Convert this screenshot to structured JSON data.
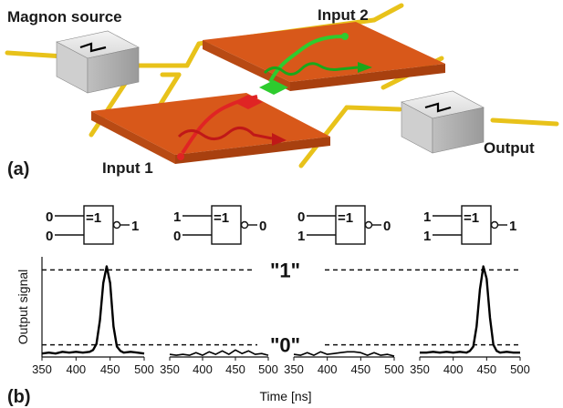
{
  "panel_a": {
    "label": "(a)",
    "magnon_source": "Magnon source",
    "input1": "Input 1",
    "input2": "Input 2",
    "output": "Output"
  },
  "panel_b": {
    "label": "(b)",
    "gates": [
      {
        "in1": "0",
        "in2": "0",
        "symbol": "=1",
        "out": "1"
      },
      {
        "in1": "1",
        "in2": "0",
        "symbol": "=1",
        "out": "0"
      },
      {
        "in1": "0",
        "in2": "1",
        "symbol": "=1",
        "out": "0"
      },
      {
        "in1": "1",
        "in2": "1",
        "symbol": "=1",
        "out": "1"
      }
    ],
    "level_high": "\"1\"",
    "level_low": "\"0\""
  },
  "chart_data": {
    "type": "line",
    "xlabel": "Time [ns]",
    "ylabel": "Output signal",
    "xlim": [
      350,
      500
    ],
    "ylim": [
      0,
      1.15
    ],
    "x_ticks": [
      "350",
      "400",
      "450",
      "500"
    ],
    "levels": {
      "high": 1.0,
      "low": 0.14
    },
    "series": [
      {
        "peak": true,
        "x": [
          350,
          360,
          370,
          380,
          390,
          400,
          410,
          420,
          425,
          430,
          435,
          440,
          445,
          450,
          455,
          460,
          465,
          470,
          480,
          490,
          500
        ],
        "y": [
          0.04,
          0.05,
          0.04,
          0.06,
          0.05,
          0.06,
          0.05,
          0.06,
          0.08,
          0.15,
          0.42,
          0.85,
          1.04,
          0.85,
          0.35,
          0.12,
          0.07,
          0.05,
          0.06,
          0.05,
          0.04
        ]
      },
      {
        "peak": false,
        "x": [
          350,
          360,
          370,
          380,
          390,
          400,
          410,
          420,
          430,
          440,
          450,
          460,
          470,
          480,
          490,
          500
        ],
        "y": [
          0.02,
          0.03,
          0.02,
          0.03,
          0.04,
          0.03,
          0.05,
          0.04,
          0.06,
          0.04,
          0.07,
          0.05,
          0.06,
          0.04,
          0.03,
          0.03
        ]
      },
      {
        "peak": false,
        "x": [
          350,
          360,
          370,
          380,
          390,
          400,
          410,
          420,
          430,
          440,
          450,
          460,
          470,
          480,
          490,
          500
        ],
        "y": [
          0.02,
          0.03,
          0.04,
          0.03,
          0.05,
          0.04,
          0.03,
          0.06,
          0.05,
          0.07,
          0.04,
          0.03,
          0.04,
          0.03,
          0.02,
          0.02
        ]
      },
      {
        "peak": true,
        "x": [
          350,
          360,
          370,
          380,
          390,
          400,
          410,
          420,
          425,
          430,
          435,
          440,
          445,
          450,
          455,
          460,
          465,
          470,
          480,
          490,
          500
        ],
        "y": [
          0.05,
          0.05,
          0.06,
          0.05,
          0.06,
          0.05,
          0.06,
          0.05,
          0.07,
          0.12,
          0.35,
          0.78,
          1.04,
          0.9,
          0.45,
          0.14,
          0.07,
          0.05,
          0.06,
          0.05,
          0.05
        ]
      }
    ]
  }
}
